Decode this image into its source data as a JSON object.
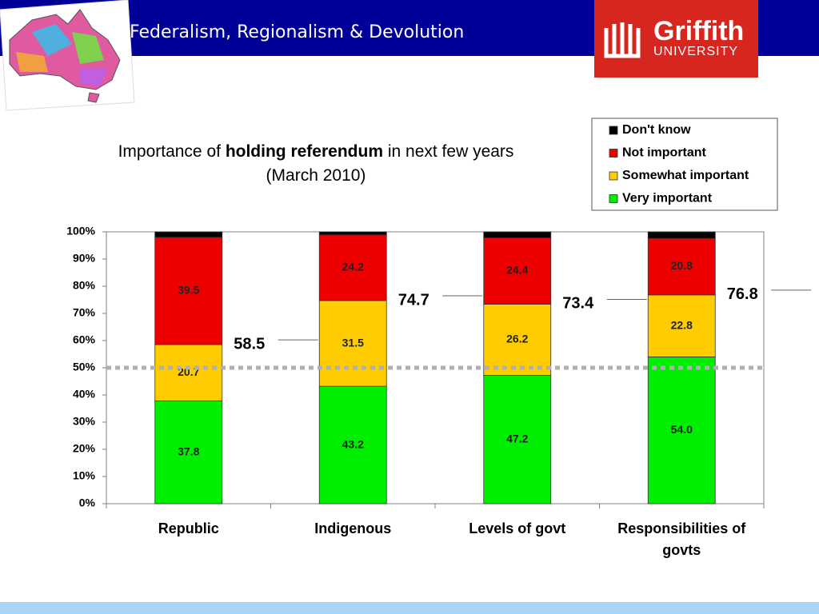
{
  "header": {
    "title": "Federalism, Regionalism & Devolution",
    "logo_name": "Griffith",
    "logo_sub": "UNIVERSITY"
  },
  "chart_data": {
    "type": "stacked_bar",
    "title": [
      "Importance of",
      "holding referendum",
      "in next few years",
      "(March 2010)"
    ],
    "categories": [
      "Republic",
      "Indigenous",
      "Levels of govt",
      "Responsibilities of govts"
    ],
    "series": [
      {
        "name": "Very important",
        "color": "#00ee00",
        "values": [
          37.8,
          43.2,
          47.2,
          54.0
        ],
        "value_labels": [
          "37.8",
          "43.2",
          "47.2",
          "54.0"
        ]
      },
      {
        "name": "Somewhat important",
        "color": "#ffcc00",
        "values": [
          20.7,
          31.5,
          26.2,
          22.8
        ]
      },
      {
        "name": "Not important",
        "color": "#ee0000",
        "values": [
          39.5,
          24.2,
          24.4,
          20.8
        ]
      },
      {
        "name": "Don't know",
        "color": "#000000",
        "values": [
          2.0,
          1.1,
          2.2,
          2.4
        ]
      }
    ],
    "annotations": [
      58.5,
      74.7,
      73.4,
      76.8
    ],
    "reference_line": {
      "value": 50,
      "color": "#b0b0b0"
    },
    "ylim": [
      0,
      100
    ],
    "yticks": [
      {
        "value": 0,
        "label": "0%"
      },
      {
        "value": 10,
        "label": "10%"
      },
      {
        "value": 20,
        "label": "20%"
      },
      {
        "value": 30,
        "label": "30%"
      },
      {
        "value": 40,
        "label": "40%"
      },
      {
        "value": 50,
        "label": "50%"
      },
      {
        "value": 60,
        "label": "60%"
      },
      {
        "value": 70,
        "label": "70%"
      },
      {
        "value": 80,
        "label": "80%"
      },
      {
        "value": 90,
        "label": "90%"
      },
      {
        "value": 100,
        "label": "100%"
      }
    ],
    "legend": "top-right"
  }
}
